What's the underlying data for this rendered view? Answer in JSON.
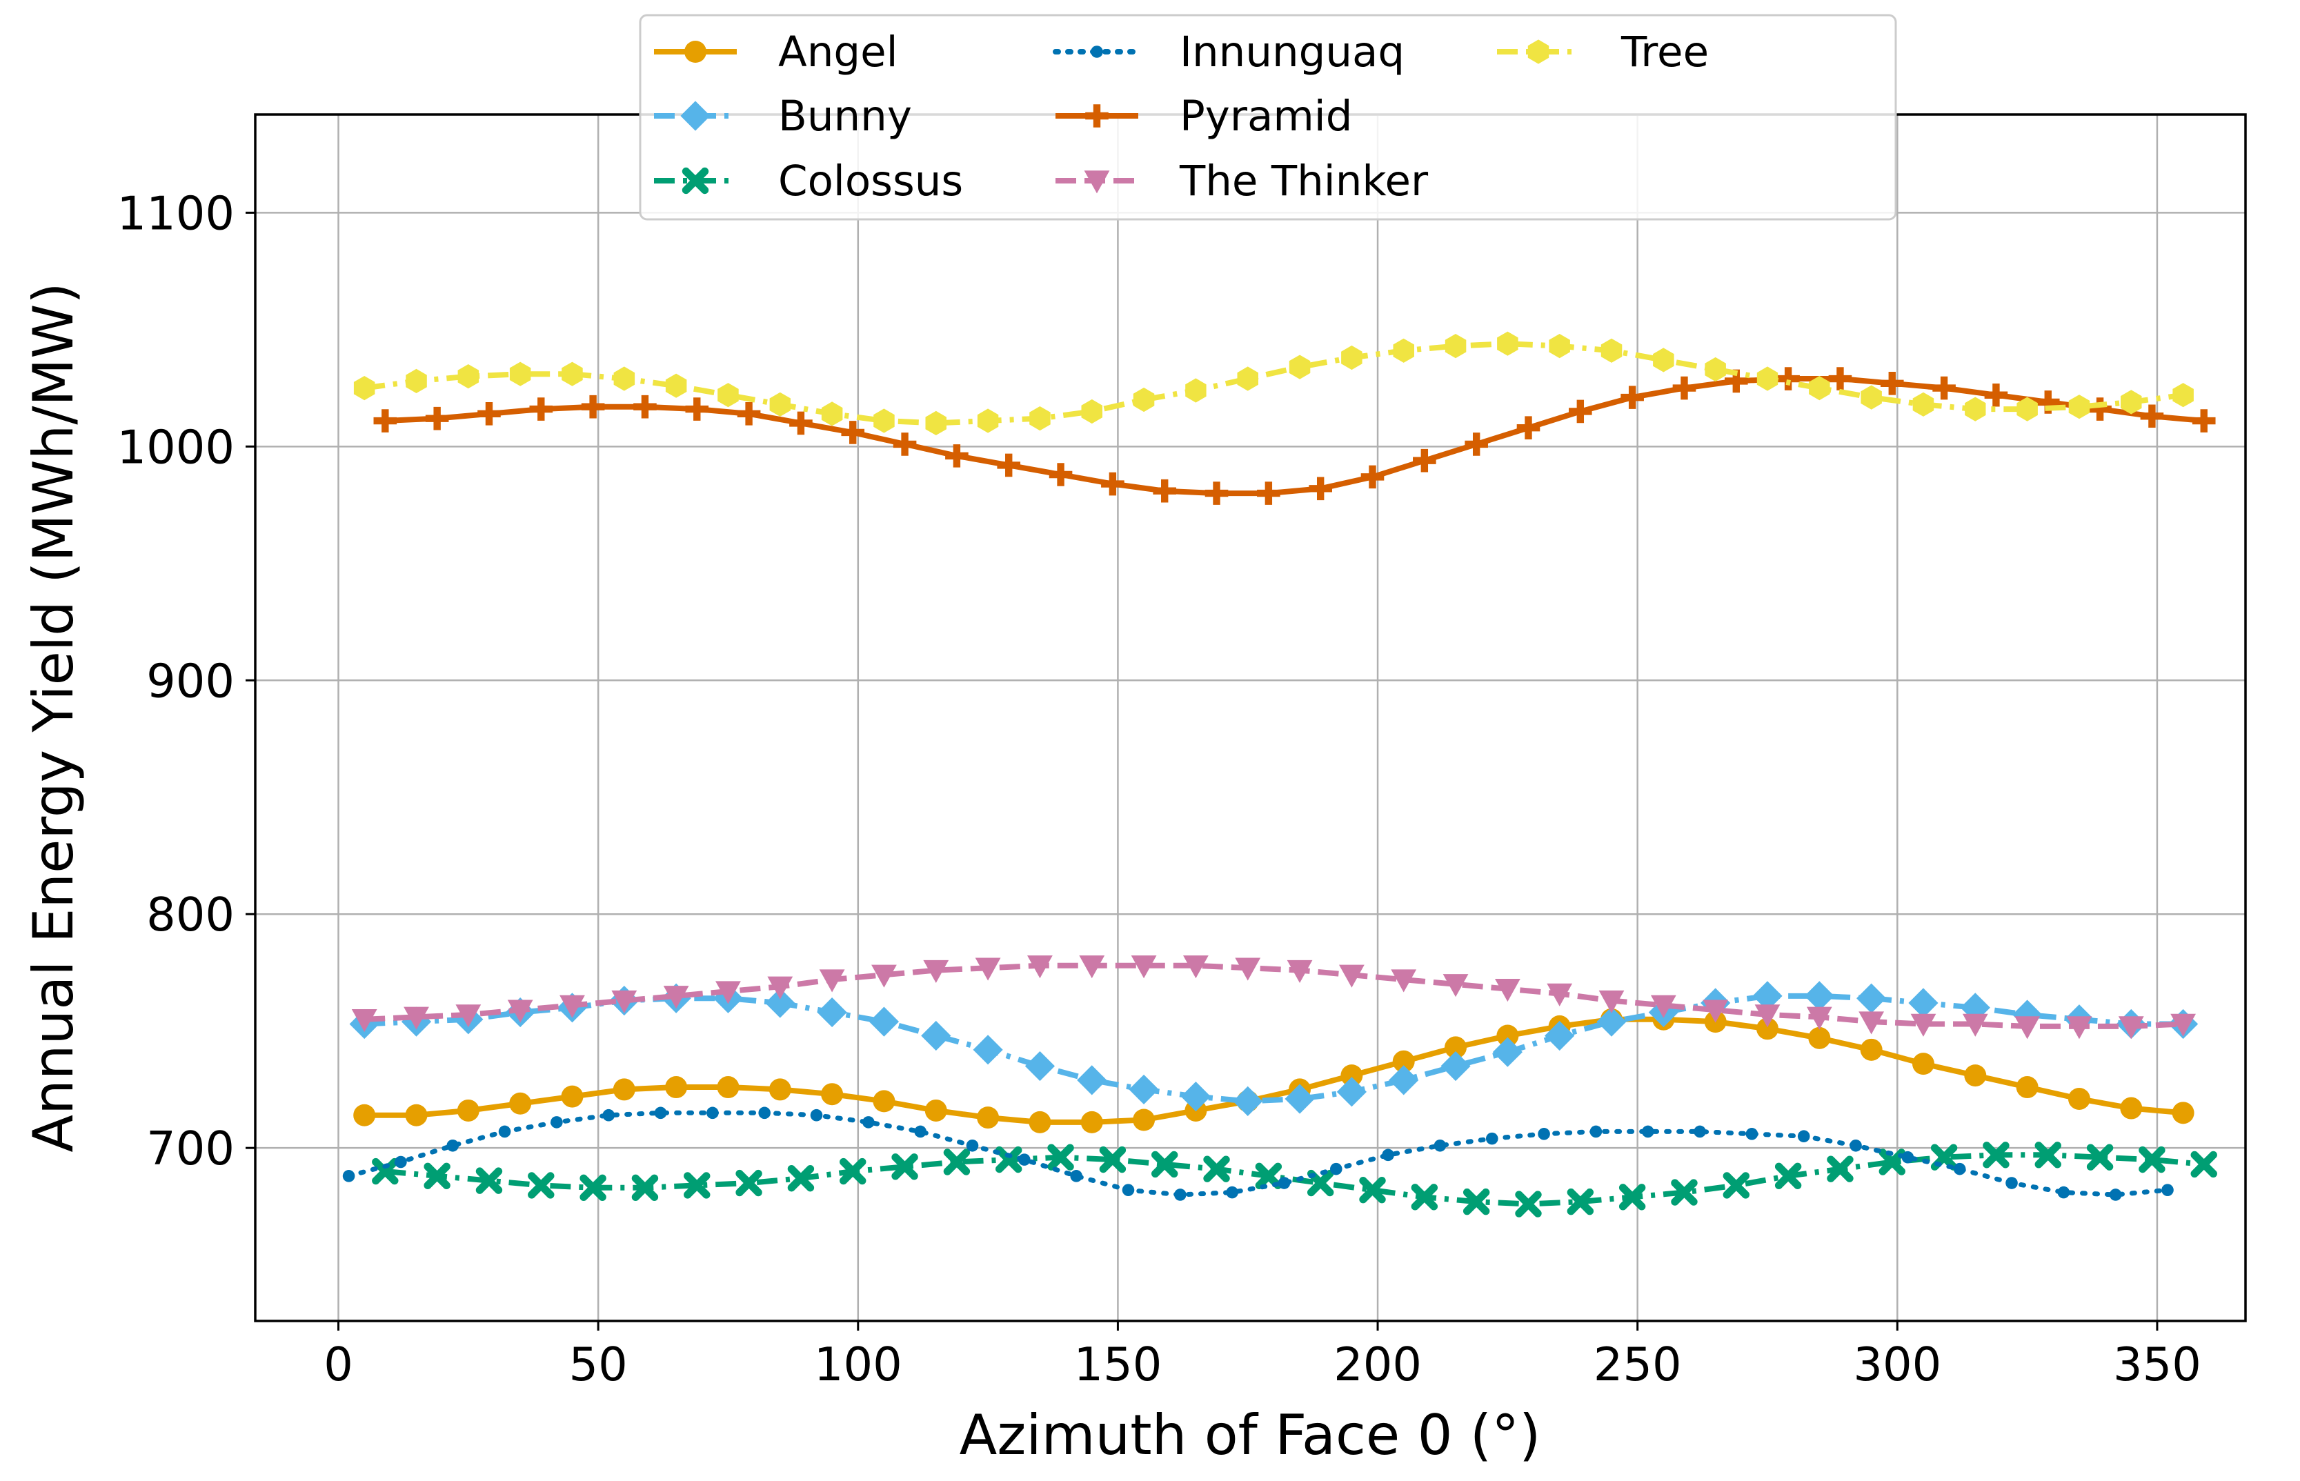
{
  "chart_data": {
    "type": "line",
    "title": "",
    "xlabel": "Azimuth of Face 0 (°)",
    "ylabel": "Annual Energy Yield (MWh/MW)",
    "xlim": [
      -16,
      367
    ],
    "ylim": [
      626,
      1142
    ],
    "xticks": [
      0,
      50,
      100,
      150,
      200,
      250,
      300,
      350
    ],
    "yticks": [
      700,
      800,
      900,
      1000,
      1100
    ],
    "grid": true,
    "legend_position": "top-center",
    "legend_columns": 3,
    "series": [
      {
        "name": "Angel",
        "color": "#E69F00",
        "line_style": "solid",
        "marker": "circle",
        "x": [
          5,
          15,
          25,
          35,
          45,
          55,
          65,
          75,
          85,
          95,
          105,
          115,
          125,
          135,
          145,
          155,
          165,
          175,
          185,
          195,
          205,
          215,
          225,
          235,
          245,
          255,
          265,
          275,
          285,
          295,
          305,
          315,
          325,
          335,
          345,
          355
        ],
        "y": [
          714,
          714,
          716,
          719,
          722,
          725,
          726,
          726,
          725,
          723,
          720,
          716,
          713,
          711,
          711,
          712,
          716,
          720,
          725,
          731,
          737,
          743,
          748,
          752,
          755,
          755,
          754,
          751,
          747,
          742,
          736,
          731,
          726,
          721,
          717,
          715
        ]
      },
      {
        "name": "Bunny",
        "color": "#56B4E9",
        "line_style": "dashdot",
        "marker": "diamond",
        "x": [
          5,
          15,
          25,
          35,
          45,
          55,
          65,
          75,
          85,
          95,
          105,
          115,
          125,
          135,
          145,
          155,
          165,
          175,
          185,
          195,
          205,
          215,
          225,
          235,
          245,
          255,
          265,
          275,
          285,
          295,
          305,
          315,
          325,
          335,
          345,
          355
        ],
        "y": [
          753,
          754,
          755,
          758,
          760,
          763,
          764,
          764,
          762,
          758,
          754,
          748,
          742,
          735,
          729,
          725,
          722,
          720,
          721,
          724,
          729,
          735,
          741,
          748,
          754,
          758,
          762,
          765,
          765,
          764,
          762,
          760,
          757,
          755,
          753,
          753
        ]
      },
      {
        "name": "Colossus",
        "color": "#009E73",
        "line_style": "dashdot",
        "marker": "x",
        "x": [
          9,
          19,
          29,
          39,
          49,
          59,
          69,
          79,
          89,
          99,
          109,
          119,
          129,
          139,
          149,
          159,
          169,
          179,
          189,
          199,
          209,
          219,
          229,
          239,
          249,
          259,
          269,
          279,
          289,
          299,
          309,
          319,
          329,
          339,
          349,
          359
        ],
        "y": [
          690,
          688,
          686,
          684,
          683,
          683,
          684,
          685,
          687,
          690,
          692,
          694,
          695,
          696,
          695,
          693,
          691,
          688,
          685,
          682,
          679,
          677,
          676,
          677,
          679,
          681,
          684,
          688,
          691,
          694,
          696,
          697,
          697,
          696,
          695,
          693
        ]
      },
      {
        "name": "Innunguaq",
        "color": "#0072B2",
        "line_style": "dotted",
        "marker": "point",
        "x": [
          2,
          12,
          22,
          32,
          42,
          52,
          62,
          72,
          82,
          92,
          102,
          112,
          122,
          132,
          142,
          152,
          162,
          172,
          182,
          192,
          202,
          212,
          222,
          232,
          242,
          252,
          262,
          272,
          282,
          292,
          302,
          312,
          322,
          332,
          342,
          352
        ],
        "y": [
          688,
          694,
          701,
          707,
          711,
          714,
          715,
          715,
          715,
          714,
          711,
          707,
          701,
          695,
          688,
          682,
          680,
          681,
          685,
          691,
          697,
          701,
          704,
          706,
          707,
          707,
          707,
          706,
          705,
          701,
          696,
          691,
          685,
          681,
          680,
          682
        ]
      },
      {
        "name": "Pyramid",
        "color": "#D55E00",
        "line_style": "solid",
        "marker": "plus",
        "x": [
          9,
          19,
          29,
          39,
          49,
          59,
          69,
          79,
          89,
          99,
          109,
          119,
          129,
          139,
          149,
          159,
          169,
          179,
          189,
          199,
          209,
          219,
          229,
          239,
          249,
          259,
          269,
          279,
          289,
          299,
          309,
          319,
          329,
          339,
          349,
          359
        ],
        "y": [
          1011,
          1012,
          1014,
          1016,
          1017,
          1017,
          1016,
          1014,
          1010,
          1006,
          1001,
          996,
          992,
          988,
          984,
          981,
          980,
          980,
          982,
          987,
          994,
          1001,
          1008,
          1015,
          1021,
          1025,
          1028,
          1029,
          1029,
          1027,
          1025,
          1022,
          1019,
          1016,
          1013,
          1011
        ]
      },
      {
        "name": "The Thinker",
        "color": "#CC79A7",
        "line_style": "dashed",
        "marker": "triangle-down",
        "x": [
          5,
          15,
          25,
          35,
          45,
          55,
          65,
          75,
          85,
          95,
          105,
          115,
          125,
          135,
          145,
          155,
          165,
          175,
          185,
          195,
          205,
          215,
          225,
          235,
          245,
          255,
          265,
          275,
          285,
          295,
          305,
          315,
          325,
          335,
          345,
          355
        ],
        "y": [
          755,
          756,
          757,
          759,
          761,
          763,
          765,
          767,
          769,
          772,
          774,
          776,
          777,
          778,
          778,
          778,
          778,
          777,
          776,
          774,
          772,
          770,
          768,
          766,
          763,
          761,
          759,
          757,
          756,
          754,
          753,
          753,
          752,
          752,
          752,
          753
        ]
      },
      {
        "name": "Tree",
        "color": "#F0E442",
        "line_style": "dashdot",
        "marker": "hexagon",
        "x": [
          5,
          15,
          25,
          35,
          45,
          55,
          65,
          75,
          85,
          95,
          105,
          115,
          125,
          135,
          145,
          155,
          165,
          175,
          185,
          195,
          205,
          215,
          225,
          235,
          245,
          255,
          265,
          275,
          285,
          295,
          305,
          315,
          325,
          335,
          345,
          355
        ],
        "y": [
          1025,
          1028,
          1030,
          1031,
          1031,
          1029,
          1026,
          1022,
          1018,
          1014,
          1011,
          1010,
          1011,
          1012,
          1015,
          1020,
          1024,
          1029,
          1034,
          1038,
          1041,
          1043,
          1044,
          1043,
          1041,
          1037,
          1033,
          1029,
          1025,
          1021,
          1018,
          1016,
          1016,
          1017,
          1019,
          1022
        ]
      }
    ]
  }
}
